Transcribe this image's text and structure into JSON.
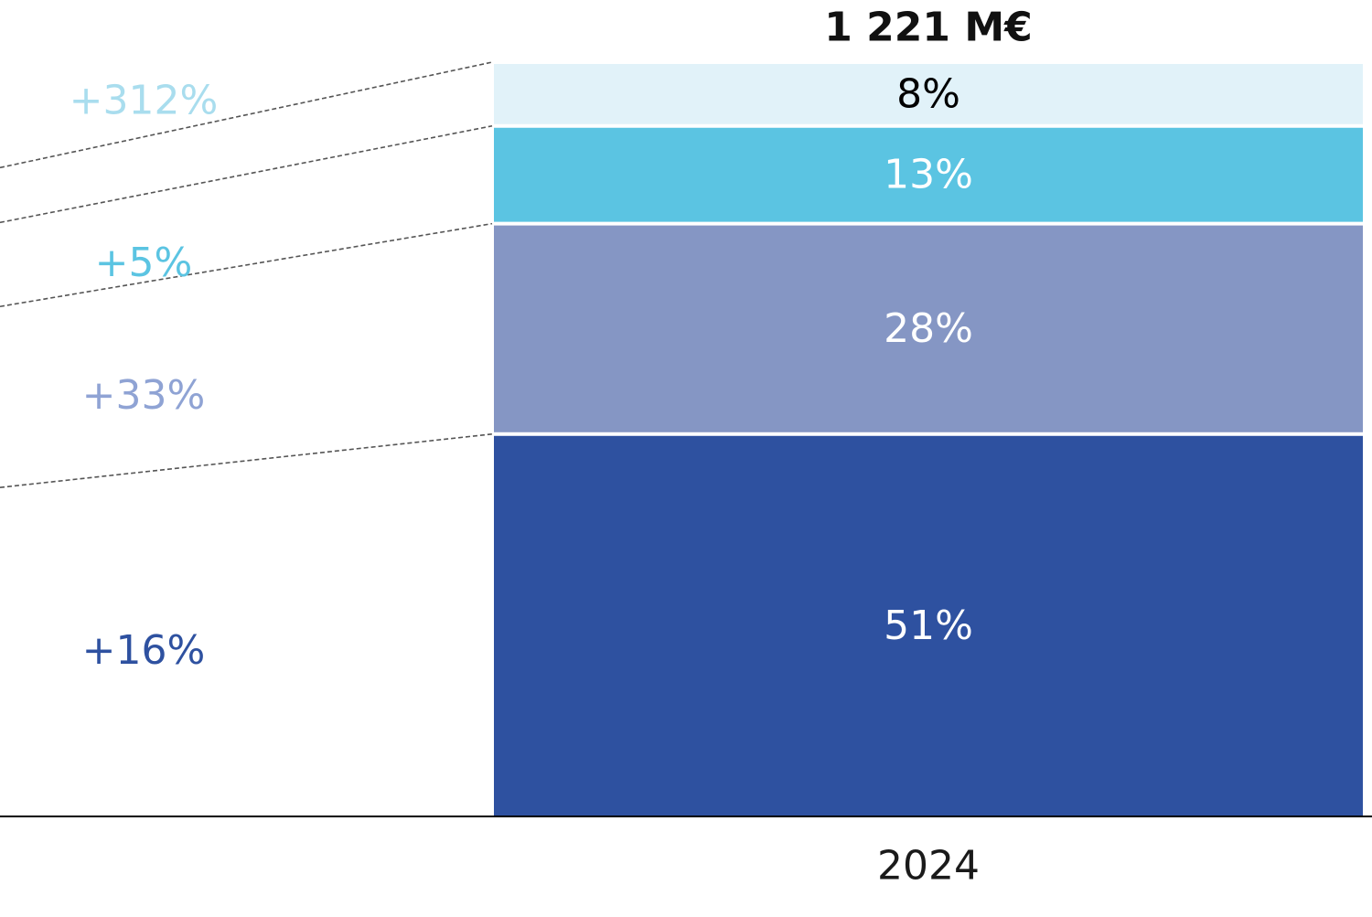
{
  "chart_data": {
    "type": "bar",
    "stacked": true,
    "categories": [
      "2024"
    ],
    "total_label": "1 221 M€",
    "series": [
      {
        "share_pct": 51,
        "label": "51%",
        "growth_label": "+16%",
        "color": "#2E51A0",
        "label_color": "#FFFFFF",
        "growth_color": "#2E51A0"
      },
      {
        "share_pct": 28,
        "label": "28%",
        "growth_label": "+33%",
        "color": "#8596C4",
        "label_color": "#FFFFFF",
        "growth_color": "#8FA3D4"
      },
      {
        "share_pct": 13,
        "label": "13%",
        "growth_label": "+5%",
        "color": "#5BC4E2",
        "label_color": "#FFFFFF",
        "growth_color": "#5BC4E2"
      },
      {
        "share_pct": 8,
        "label": "8%",
        "growth_label": "+312%",
        "color": "#E1F2F9",
        "label_color": "#000000",
        "growth_color": "#A9DDEE"
      }
    ],
    "ylim": [
      0,
      100
    ],
    "grid": false,
    "legend": "none",
    "xlabel": "",
    "ylabel": ""
  },
  "colors": {
    "axis": "#000000",
    "connector": "#555555",
    "category_label": "#1A1A1A",
    "total_label": "#111111"
  }
}
